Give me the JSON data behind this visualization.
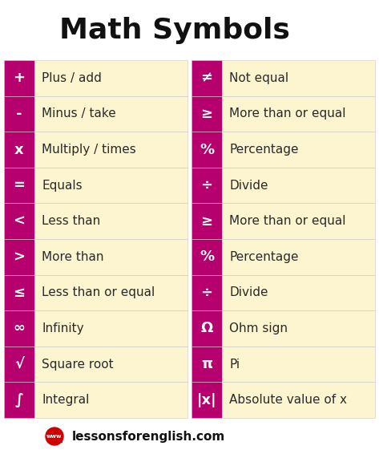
{
  "title": "Math Symbols",
  "bg_color": "#ffffff",
  "cell_bg": "#fdf5d0",
  "symbol_bg": "#b5006e",
  "symbol_color": "#ffffff",
  "text_color": "#2a2a2a",
  "title_color": "#111111",
  "footer_text": "lessonsforenglish.com",
  "left_rows": [
    [
      "+",
      "Plus / add"
    ],
    [
      "-",
      "Minus / take"
    ],
    [
      "x",
      "Multiply / times"
    ],
    [
      "=",
      "Equals"
    ],
    [
      "<",
      "Less than"
    ],
    [
      ">",
      "More than"
    ],
    [
      "≤",
      "Less than or equal"
    ],
    [
      "∞",
      "Infinity"
    ],
    [
      "√",
      "Square root"
    ],
    [
      "∫",
      "Integral"
    ]
  ],
  "right_rows": [
    [
      "≠",
      "Not equal"
    ],
    [
      "≥",
      "More than or equal"
    ],
    [
      "%",
      "Percentage"
    ],
    [
      "÷",
      "Divide"
    ],
    [
      "≥",
      "More than or equal"
    ],
    [
      "%",
      "Percentage"
    ],
    [
      "÷",
      "Divide"
    ],
    [
      "Ω",
      "Ohm sign"
    ],
    [
      "π",
      "Pi"
    ],
    [
      "|x|",
      "Absolute value of x"
    ]
  ],
  "fig_width": 4.73,
  "fig_height": 5.66,
  "dpi": 100
}
